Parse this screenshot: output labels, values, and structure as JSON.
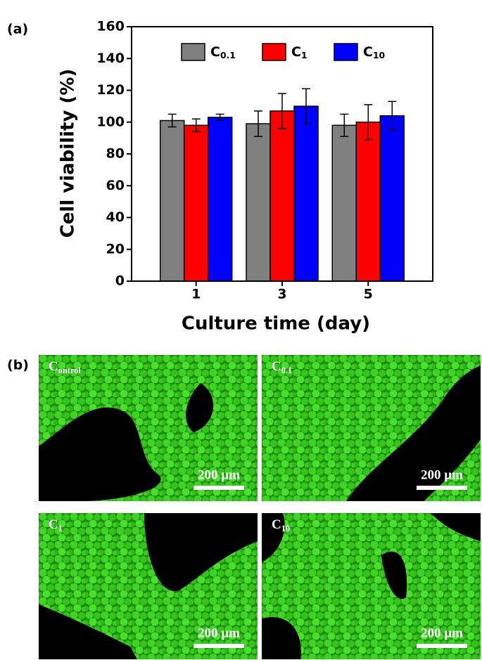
{
  "chart_data": {
    "type": "bar",
    "panel_label": "(a)",
    "xlabel": "Culture time  (day)",
    "ylabel": "Cell viability  (%)",
    "categories": [
      "1",
      "3",
      "5"
    ],
    "series": [
      {
        "name": "C0.1",
        "color": "#808080",
        "values": [
          101,
          99,
          98
        ],
        "errors": [
          4,
          8,
          7
        ]
      },
      {
        "name": "C1",
        "color": "#ff0000",
        "values": [
          98,
          107,
          100
        ],
        "errors": [
          4,
          11,
          11
        ]
      },
      {
        "name": "C10",
        "color": "#0000ff",
        "values": [
          103,
          110,
          104
        ],
        "errors": [
          2,
          11,
          9
        ]
      }
    ],
    "ylim": [
      0,
      160
    ],
    "yticks": [
      0,
      20,
      40,
      60,
      80,
      100,
      120,
      140,
      160
    ],
    "grid": false
  },
  "images": {
    "panel_label": "(b)",
    "items": [
      {
        "label": "Control",
        "scale_bar": "200 µm"
      },
      {
        "label": "C0.1",
        "scale_bar": "200 µm"
      },
      {
        "label": "C1",
        "scale_bar": "200 µm"
      },
      {
        "label": "C10",
        "scale_bar": "200 µm"
      }
    ]
  }
}
